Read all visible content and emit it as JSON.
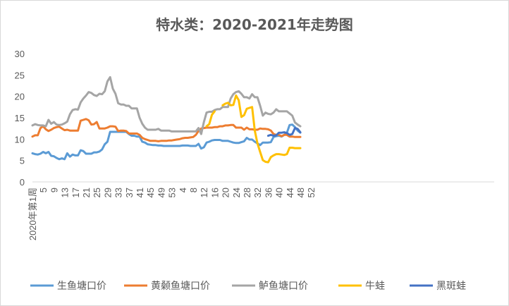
{
  "chart_data": {
    "type": "line",
    "title": "特水类：2020-2021年走势图",
    "ylim": [
      0,
      30
    ],
    "y_ticks": [
      "0",
      "5",
      "10",
      "15",
      "20",
      "25",
      "30"
    ],
    "x_tick_labels": [
      "2020年第1周",
      "5",
      "9",
      "13",
      "17",
      "21",
      "25",
      "29",
      "33",
      "37",
      "41",
      "45",
      "49",
      "53",
      "4",
      "8",
      "12",
      "16",
      "20",
      "24",
      "28",
      "32",
      "36",
      "40",
      "44",
      "48",
      "52"
    ],
    "grid": false,
    "legend_position": "bottom",
    "series": [
      {
        "name": "生鱼塘口价",
        "color": "#5b9bd5",
        "values": [
          6.7,
          6.5,
          6.4,
          6.6,
          7.0,
          6.7,
          7.0,
          6.1,
          6.0,
          5.6,
          5.3,
          5.5,
          5.3,
          6.7,
          5.9,
          6.4,
          6.2,
          6.2,
          7.4,
          7.2,
          6.6,
          6.6,
          6.6,
          6.9,
          6.9,
          7.1,
          7.6,
          8.8,
          9.4,
          11.7,
          11.7,
          11.7,
          11.7,
          11.7,
          11.7,
          11.7,
          11.2,
          10.8,
          10.8,
          10.6,
          10.6,
          9.4,
          9.2,
          8.8,
          8.7,
          8.6,
          8.6,
          8.5,
          8.5,
          8.4,
          8.4,
          8.4,
          8.4,
          8.4,
          8.4,
          8.4,
          8.5,
          8.5,
          8.5,
          8.4,
          8.4,
          8.4,
          8.9,
          7.8,
          8.1,
          9.2,
          9.4,
          9.7,
          9.8,
          9.8,
          9.8,
          9.6,
          9.6,
          9.6,
          9.4,
          9.2,
          9.1,
          9.1,
          9.3,
          9.5,
          10.3,
          9.9,
          9.9,
          9.4,
          9.0,
          8.6,
          9.2,
          9.2,
          9.2,
          9.3,
          10.5,
          10.7,
          10.8,
          10.6,
          11.0,
          11.5,
          13.3,
          13.4,
          12.8,
          12.0,
          11.5
        ]
      },
      {
        "name": "黄颡鱼塘口价",
        "color": "#ed7d31",
        "values": [
          10.6,
          10.9,
          10.9,
          12.6,
          13.0,
          12.3,
          11.9,
          12.2,
          12.6,
          12.8,
          12.9,
          12.5,
          12.1,
          12.2,
          12.0,
          12.0,
          12.0,
          12.0,
          14.3,
          14.5,
          14.7,
          14.4,
          13.4,
          13.5,
          14.0,
          12.5,
          12.5,
          12.5,
          12.7,
          13.0,
          13.0,
          12.9,
          11.9,
          12.0,
          12.0,
          11.9,
          11.3,
          11.3,
          11.3,
          11.3,
          11.0,
          10.3,
          10.0,
          9.8,
          9.6,
          9.6,
          9.6,
          9.5,
          9.6,
          9.6,
          9.6,
          9.7,
          9.7,
          9.8,
          9.9,
          10.0,
          10.2,
          10.3,
          10.3,
          10.4,
          10.5,
          11.0,
          11.9,
          12.5,
          12.6,
          12.7,
          12.7,
          12.7,
          12.8,
          12.8,
          13.0,
          13.0,
          13.2,
          13.2,
          13.3,
          13.3,
          12.7,
          12.7,
          12.7,
          12.2,
          12.7,
          12.3,
          12.3,
          12.2,
          12.2,
          12.5,
          12.4,
          12.4,
          12.3,
          12.0,
          11.2,
          11.0,
          11.0,
          10.7,
          11.0,
          11.0,
          10.6,
          10.6,
          10.5,
          10.5,
          10.5
        ]
      },
      {
        "name": "鲈鱼塘口价",
        "color": "#a5a5a5",
        "values": [
          13.2,
          13.5,
          13.3,
          13.2,
          13.2,
          13.0,
          14.5,
          13.6,
          14.0,
          13.4,
          13.3,
          13.4,
          13.7,
          14.1,
          15.8,
          16.8,
          17.0,
          16.9,
          18.6,
          19.5,
          20.2,
          21.0,
          20.8,
          20.3,
          20.1,
          20.6,
          20.5,
          21.2,
          23.5,
          24.5,
          21.8,
          20.6,
          18.4,
          18.1,
          18.1,
          17.8,
          17.8,
          17.2,
          17.2,
          17.2,
          15.0,
          13.6,
          12.7,
          12.2,
          12.2,
          12.2,
          12.2,
          12.4,
          12.0,
          12.0,
          12.0,
          12.0,
          11.8,
          11.8,
          11.8,
          11.8,
          11.8,
          11.8,
          11.8,
          11.8,
          11.8,
          11.8,
          12.6,
          11.2,
          14.0,
          16.2,
          16.4,
          16.4,
          16.8,
          17.0,
          17.0,
          17.5,
          17.5,
          17.5,
          19.5,
          20.5,
          21.0,
          21.2,
          20.6,
          19.8,
          19.8,
          19.5,
          20.5,
          19.8,
          19.8,
          17.8,
          15.5,
          16.2,
          15.9,
          15.8,
          16.2,
          17.0,
          16.5,
          16.5,
          16.5,
          16.5,
          16.0,
          15.5,
          13.9,
          13.4,
          13.0
        ]
      },
      {
        "name": "牛蛙",
        "color": "#ffc000",
        "values": [
          null,
          null,
          null,
          null,
          null,
          null,
          null,
          null,
          null,
          null,
          null,
          null,
          null,
          null,
          null,
          null,
          null,
          null,
          null,
          null,
          null,
          null,
          null,
          null,
          null,
          null,
          null,
          null,
          null,
          null,
          null,
          null,
          null,
          null,
          null,
          null,
          null,
          null,
          null,
          null,
          null,
          null,
          null,
          null,
          null,
          null,
          null,
          null,
          null,
          null,
          null,
          null,
          null,
          null,
          null,
          null,
          null,
          null,
          null,
          null,
          null,
          null,
          null,
          null,
          null,
          13.0,
          13.5,
          15.7,
          16.5,
          null,
          null,
          17.9,
          18.3,
          18.5,
          17.9,
          18.0,
          20.2,
          19.1,
          15.2,
          15.6,
          17.1,
          17.3,
          17.5,
          12.0,
          9.0,
          7.0,
          5.1,
          4.7,
          4.6,
          5.8,
          6.2,
          6.5,
          6.5,
          6.4,
          6.3,
          6.5,
          8.0,
          8.0,
          7.9,
          7.9,
          7.9
        ]
      },
      {
        "name": "黑斑蛙",
        "color": "#4472c4",
        "values": [
          null,
          null,
          null,
          null,
          null,
          null,
          null,
          null,
          null,
          null,
          null,
          null,
          null,
          null,
          null,
          null,
          null,
          null,
          null,
          null,
          null,
          null,
          null,
          null,
          null,
          null,
          null,
          null,
          null,
          null,
          null,
          null,
          null,
          null,
          null,
          null,
          null,
          null,
          null,
          null,
          null,
          null,
          null,
          null,
          null,
          null,
          null,
          null,
          null,
          null,
          null,
          null,
          null,
          null,
          null,
          null,
          null,
          null,
          null,
          null,
          null,
          null,
          null,
          null,
          null,
          null,
          null,
          null,
          null,
          null,
          null,
          null,
          null,
          null,
          null,
          null,
          null,
          null,
          null,
          null,
          null,
          null,
          null,
          null,
          null,
          null,
          null,
          null,
          10.8,
          11.0,
          10.8,
          10.9,
          11.5,
          11.5,
          11.6,
          11.4,
          11.0,
          11.2,
          12.6,
          12.4,
          11.6
        ]
      }
    ]
  }
}
